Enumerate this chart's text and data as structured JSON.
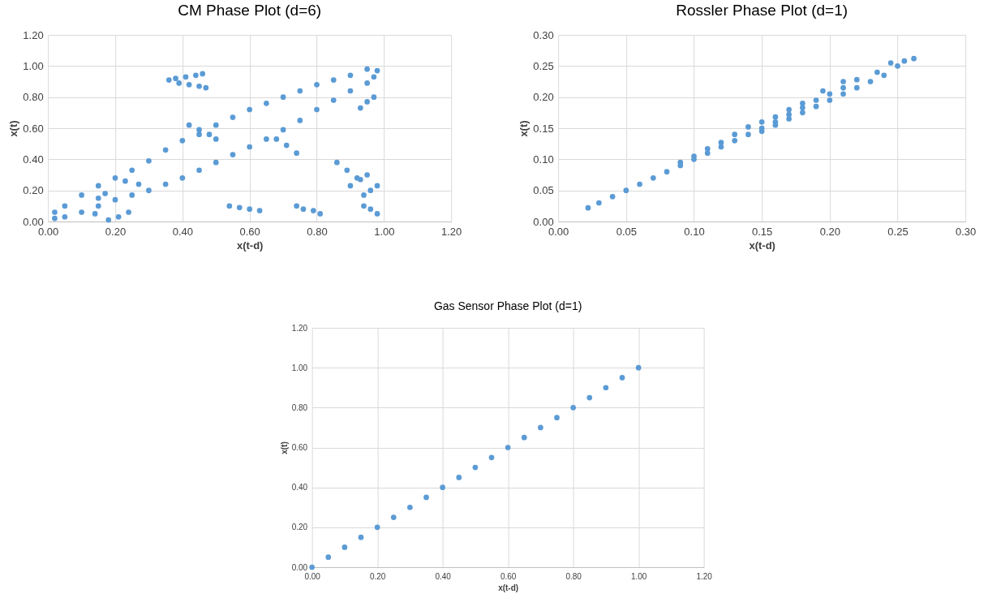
{
  "chart_data": [
    {
      "type": "scatter",
      "title": "CM Phase Plot (d=6)",
      "xlabel": "x(t-d)",
      "ylabel": "x(t)",
      "grid": true,
      "marker": "circle",
      "xlim": [
        0,
        1.2
      ],
      "ylim": [
        0,
        1.2
      ],
      "xticks": [
        {
          "value": 0,
          "label": "0.00"
        },
        {
          "value": 0.2,
          "label": "0.20"
        },
        {
          "value": 0.4,
          "label": "0.40"
        },
        {
          "value": 0.6,
          "label": "0.60"
        },
        {
          "value": 0.8,
          "label": "0.80"
        },
        {
          "value": 1,
          "label": "1.00"
        },
        {
          "value": 1.2,
          "label": "1.20"
        }
      ],
      "yticks": [
        {
          "value": 0,
          "label": "0.00"
        },
        {
          "value": 0.2,
          "label": "0.20"
        },
        {
          "value": 0.4,
          "label": "0.40"
        },
        {
          "value": 0.6,
          "label": "0.60"
        },
        {
          "value": 0.8,
          "label": "0.80"
        },
        {
          "value": 1,
          "label": "1.00"
        },
        {
          "value": 1.2,
          "label": "1.20"
        }
      ],
      "series": [
        {
          "color": "#5b9bd5",
          "x": [
            0.02,
            0.05,
            0.1,
            0.15,
            0.2,
            0.25,
            0.3,
            0.35,
            0.4,
            0.45,
            0.5,
            0.55,
            0.6,
            0.65,
            0.7,
            0.75,
            0.8,
            0.85,
            0.9,
            0.95,
            0.98,
            0.97,
            0.95,
            0.9,
            0.85,
            0.8,
            0.75,
            0.7,
            0.65,
            0.6,
            0.55,
            0.5,
            0.45,
            0.4,
            0.35,
            0.3,
            0.25,
            0.2,
            0.15,
            0.1,
            0.05,
            0.02,
            0.36,
            0.38,
            0.41,
            0.44,
            0.46,
            0.39,
            0.42,
            0.45,
            0.47,
            0.42,
            0.45,
            0.48,
            0.5,
            0.68,
            0.71,
            0.74,
            0.86,
            0.89,
            0.92,
            0.95,
            0.9,
            0.93,
            0.93,
            0.95,
            0.97,
            0.94,
            0.96,
            0.98,
            0.94,
            0.96,
            0.98,
            0.54,
            0.57,
            0.6,
            0.63,
            0.74,
            0.76,
            0.79,
            0.81,
            0.18,
            0.21,
            0.24,
            0.15,
            0.17,
            0.14,
            0.23,
            0.27
          ],
          "values": [
            0.06,
            0.1,
            0.17,
            0.23,
            0.28,
            0.33,
            0.39,
            0.46,
            0.52,
            0.56,
            0.62,
            0.67,
            0.72,
            0.76,
            0.8,
            0.84,
            0.88,
            0.91,
            0.94,
            0.98,
            0.97,
            0.93,
            0.89,
            0.84,
            0.78,
            0.72,
            0.65,
            0.59,
            0.53,
            0.48,
            0.43,
            0.38,
            0.33,
            0.28,
            0.24,
            0.2,
            0.17,
            0.14,
            0.1,
            0.06,
            0.03,
            0.02,
            0.91,
            0.92,
            0.93,
            0.94,
            0.95,
            0.89,
            0.88,
            0.87,
            0.86,
            0.62,
            0.59,
            0.56,
            0.53,
            0.53,
            0.49,
            0.44,
            0.38,
            0.33,
            0.28,
            0.3,
            0.23,
            0.27,
            0.73,
            0.77,
            0.8,
            0.17,
            0.2,
            0.23,
            0.1,
            0.08,
            0.05,
            0.1,
            0.09,
            0.08,
            0.07,
            0.1,
            0.08,
            0.07,
            0.05,
            0.01,
            0.03,
            0.06,
            0.15,
            0.18,
            0.05,
            0.26,
            0.24
          ]
        }
      ]
    },
    {
      "type": "scatter",
      "title": "Rossler Phase Plot (d=1)",
      "xlabel": "x(t-d)",
      "ylabel": "x(t)",
      "grid": true,
      "marker": "circle",
      "xlim": [
        0,
        0.3
      ],
      "ylim": [
        0,
        0.3
      ],
      "xticks": [
        {
          "value": 0,
          "label": "0.00"
        },
        {
          "value": 0.05,
          "label": "0.05"
        },
        {
          "value": 0.1,
          "label": "0.10"
        },
        {
          "value": 0.15,
          "label": "0.15"
        },
        {
          "value": 0.2,
          "label": "0.20"
        },
        {
          "value": 0.25,
          "label": "0.25"
        },
        {
          "value": 0.3,
          "label": "0.30"
        }
      ],
      "yticks": [
        {
          "value": 0,
          "label": "0.00"
        },
        {
          "value": 0.05,
          "label": "0.05"
        },
        {
          "value": 0.1,
          "label": "0.10"
        },
        {
          "value": 0.15,
          "label": "0.15"
        },
        {
          "value": 0.2,
          "label": "0.20"
        },
        {
          "value": 0.25,
          "label": "0.25"
        },
        {
          "value": 0.3,
          "label": "0.30"
        }
      ],
      "series": [
        {
          "color": "#5b9bd5",
          "x": [
            0.022,
            0.03,
            0.04,
            0.05,
            0.06,
            0.07,
            0.08,
            0.09,
            0.09,
            0.1,
            0.1,
            0.11,
            0.11,
            0.12,
            0.12,
            0.13,
            0.13,
            0.14,
            0.14,
            0.15,
            0.15,
            0.15,
            0.16,
            0.16,
            0.16,
            0.17,
            0.17,
            0.17,
            0.18,
            0.18,
            0.18,
            0.19,
            0.19,
            0.2,
            0.2,
            0.21,
            0.21,
            0.22,
            0.22,
            0.23,
            0.235,
            0.24,
            0.245,
            0.25,
            0.255,
            0.262,
            0.195,
            0.21
          ],
          "values": [
            0.022,
            0.03,
            0.04,
            0.05,
            0.06,
            0.07,
            0.08,
            0.09,
            0.095,
            0.1,
            0.105,
            0.11,
            0.117,
            0.12,
            0.127,
            0.13,
            0.14,
            0.14,
            0.152,
            0.145,
            0.15,
            0.16,
            0.155,
            0.16,
            0.168,
            0.165,
            0.172,
            0.18,
            0.175,
            0.183,
            0.19,
            0.185,
            0.195,
            0.195,
            0.205,
            0.205,
            0.215,
            0.215,
            0.228,
            0.225,
            0.24,
            0.235,
            0.255,
            0.25,
            0.258,
            0.262,
            0.21,
            0.225
          ]
        }
      ]
    },
    {
      "type": "scatter",
      "title": "Gas Sensor Phase Plot (d=1)",
      "xlabel": "x(t-d)",
      "ylabel": "x(t)",
      "grid": true,
      "marker": "circle",
      "xlim": [
        0,
        1.2
      ],
      "ylim": [
        0,
        1.2
      ],
      "xticks": [
        {
          "value": 0,
          "label": "0.00"
        },
        {
          "value": 0.2,
          "label": "0.20"
        },
        {
          "value": 0.4,
          "label": "0.40"
        },
        {
          "value": 0.6,
          "label": "0.60"
        },
        {
          "value": 0.8,
          "label": "0.80"
        },
        {
          "value": 1,
          "label": "1.00"
        },
        {
          "value": 1.2,
          "label": "1.20"
        }
      ],
      "yticks": [
        {
          "value": 0,
          "label": "0.00"
        },
        {
          "value": 0.2,
          "label": "0.20"
        },
        {
          "value": 0.4,
          "label": "0.40"
        },
        {
          "value": 0.6,
          "label": "0.60"
        },
        {
          "value": 0.8,
          "label": "0.80"
        },
        {
          "value": 1,
          "label": "1.00"
        },
        {
          "value": 1.2,
          "label": "1.20"
        }
      ],
      "series": [
        {
          "color": "#5b9bd5",
          "x": [
            0,
            0.05,
            0.1,
            0.15,
            0.2,
            0.25,
            0.3,
            0.35,
            0.4,
            0.45,
            0.5,
            0.55,
            0.6,
            0.65,
            0.7,
            0.75,
            0.8,
            0.85,
            0.9,
            0.95,
            1
          ],
          "values": [
            0,
            0.05,
            0.1,
            0.15,
            0.2,
            0.25,
            0.3,
            0.35,
            0.4,
            0.45,
            0.5,
            0.55,
            0.6,
            0.65,
            0.7,
            0.75,
            0.8,
            0.85,
            0.9,
            0.95,
            1
          ]
        }
      ]
    }
  ]
}
